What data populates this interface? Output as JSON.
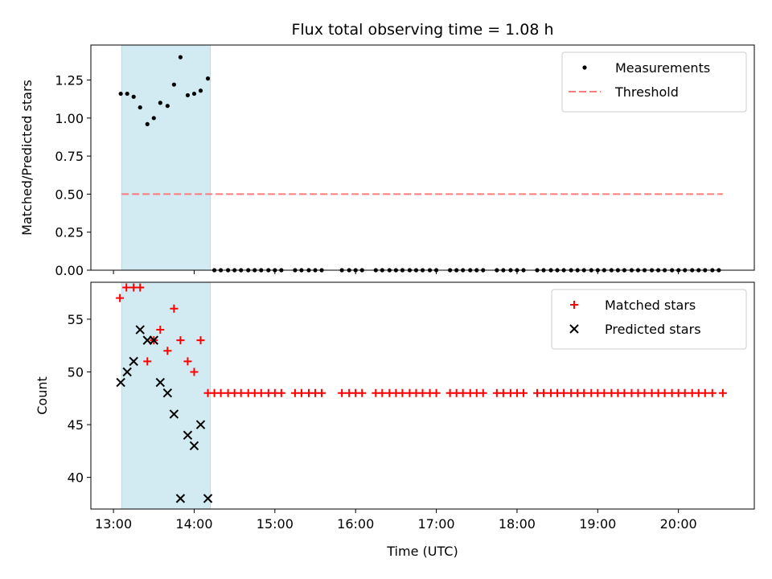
{
  "chart_data": {
    "type": "scatter",
    "title": "Flux total observing time = 1.08 h",
    "xlabel": "Time (UTC)",
    "x_unit": "hours_utc",
    "x_ticks": [
      {
        "value": 13,
        "label": "13:00"
      },
      {
        "value": 14,
        "label": "14:00"
      },
      {
        "value": 15,
        "label": "15:00"
      },
      {
        "value": 16,
        "label": "16:00"
      },
      {
        "value": 17,
        "label": "17:00"
      },
      {
        "value": 18,
        "label": "18:00"
      },
      {
        "value": 19,
        "label": "19:00"
      },
      {
        "value": 20,
        "label": "20:00"
      }
    ],
    "xlim": [
      12.72,
      20.94
    ],
    "shaded_span": {
      "start": 13.1,
      "end": 14.2,
      "color": "#add8e6"
    },
    "panels": [
      {
        "id": "ratio",
        "ylabel": "Matched/Predicted stars",
        "ylim": [
          0,
          1.48
        ],
        "y_ticks": [
          {
            "value": 0,
            "label": "0.00"
          },
          {
            "value": 0.25,
            "label": "0.25"
          },
          {
            "value": 0.5,
            "label": "0.50"
          },
          {
            "value": 0.75,
            "label": "0.75"
          },
          {
            "value": 1.0,
            "label": "1.00"
          },
          {
            "value": 1.25,
            "label": "1.25"
          }
        ],
        "series": [
          {
            "name": "Measurements",
            "marker": "dot",
            "color": "#000000",
            "x": [
              13.09,
              13.17,
              13.25,
              13.33,
              13.42,
              13.5,
              13.58,
              13.67,
              13.75,
              13.83,
              13.92,
              14.0,
              14.08,
              14.17,
              14.25,
              14.33,
              14.42,
              14.5,
              14.58,
              14.67,
              14.75,
              14.83,
              14.92,
              15.0,
              15.08,
              15.25,
              15.33,
              15.42,
              15.5,
              15.58,
              15.83,
              15.92,
              16.0,
              16.08,
              16.25,
              16.33,
              16.42,
              16.5,
              16.58,
              16.67,
              16.75,
              16.83,
              16.92,
              17.0,
              17.17,
              17.25,
              17.33,
              17.42,
              17.5,
              17.58,
              17.75,
              17.83,
              17.92,
              18.0,
              18.08,
              18.25,
              18.33,
              18.42,
              18.5,
              18.58,
              18.67,
              18.75,
              18.83,
              18.92,
              19.0,
              19.08,
              19.17,
              19.25,
              19.33,
              19.42,
              19.5,
              19.58,
              19.67,
              19.75,
              19.83,
              19.92,
              20.0,
              20.08,
              20.17,
              20.25,
              20.33,
              20.42,
              20.5
            ],
            "y": [
              1.16,
              1.16,
              1.14,
              1.07,
              0.96,
              1.0,
              1.1,
              1.08,
              1.22,
              1.4,
              1.15,
              1.16,
              1.18,
              1.26,
              0,
              0,
              0,
              0,
              0,
              0,
              0,
              0,
              0,
              0,
              0,
              0,
              0,
              0,
              0,
              0,
              0,
              0,
              0,
              0,
              0,
              0,
              0,
              0,
              0,
              0,
              0,
              0,
              0,
              0,
              0,
              0,
              0,
              0,
              0,
              0,
              0,
              0,
              0,
              0,
              0,
              0,
              0,
              0,
              0,
              0,
              0,
              0,
              0,
              0,
              0,
              0,
              0,
              0,
              0,
              0,
              0,
              0,
              0,
              0,
              0,
              0,
              0,
              0,
              0,
              0,
              0,
              0,
              0
            ]
          },
          {
            "name": "Threshold",
            "marker": "dashed-line",
            "color": "#ff7b7b",
            "x": [
              13.1,
              20.55
            ],
            "y": [
              0.5,
              0.5
            ]
          }
        ],
        "legend": {
          "placement": "top-right",
          "entries": [
            "Measurements",
            "Threshold"
          ]
        }
      },
      {
        "id": "counts",
        "ylabel": "Count",
        "ylim": [
          37,
          58.5
        ],
        "y_ticks": [
          {
            "value": 40,
            "label": "40"
          },
          {
            "value": 45,
            "label": "45"
          },
          {
            "value": 50,
            "label": "50"
          },
          {
            "value": 55,
            "label": "55"
          }
        ],
        "series": [
          {
            "name": "Matched stars",
            "marker": "plus",
            "color": "#ff0000",
            "x": [
              13.08,
              13.16,
              13.25,
              13.33,
              13.42,
              13.5,
              13.58,
              13.67,
              13.75,
              13.83,
              13.92,
              14.0,
              14.08,
              14.17,
              14.25,
              14.33,
              14.42,
              14.5,
              14.58,
              14.67,
              14.75,
              14.83,
              14.92,
              15.0,
              15.08,
              15.25,
              15.33,
              15.42,
              15.5,
              15.58,
              15.83,
              15.92,
              16.0,
              16.08,
              16.25,
              16.33,
              16.42,
              16.5,
              16.58,
              16.67,
              16.75,
              16.83,
              16.92,
              17.0,
              17.17,
              17.25,
              17.33,
              17.42,
              17.5,
              17.58,
              17.75,
              17.83,
              17.92,
              18.0,
              18.08,
              18.25,
              18.33,
              18.42,
              18.5,
              18.58,
              18.67,
              18.75,
              18.83,
              18.92,
              19.0,
              19.08,
              19.17,
              19.25,
              19.33,
              19.42,
              19.5,
              19.58,
              19.67,
              19.75,
              19.83,
              19.92,
              20.0,
              20.08,
              20.17,
              20.25,
              20.33,
              20.42,
              20.55
            ],
            "y": [
              57,
              58,
              58,
              58,
              51,
              53,
              54,
              52,
              56,
              53,
              51,
              50,
              53,
              48,
              48,
              48,
              48,
              48,
              48,
              48,
              48,
              48,
              48,
              48,
              48,
              48,
              48,
              48,
              48,
              48,
              48,
              48,
              48,
              48,
              48,
              48,
              48,
              48,
              48,
              48,
              48,
              48,
              48,
              48,
              48,
              48,
              48,
              48,
              48,
              48,
              48,
              48,
              48,
              48,
              48,
              48,
              48,
              48,
              48,
              48,
              48,
              48,
              48,
              48,
              48,
              48,
              48,
              48,
              48,
              48,
              48,
              48,
              48,
              48,
              48,
              48,
              48,
              48,
              48,
              48,
              48,
              48,
              48
            ]
          },
          {
            "name": "Predicted stars",
            "marker": "x",
            "color": "#000000",
            "x": [
              13.09,
              13.17,
              13.25,
              13.33,
              13.42,
              13.5,
              13.58,
              13.67,
              13.75,
              13.83,
              13.92,
              14.0,
              14.08,
              14.17
            ],
            "y": [
              49,
              50,
              51,
              54,
              53,
              53,
              49,
              48,
              46,
              38,
              44,
              43,
              45,
              38
            ]
          }
        ],
        "legend": {
          "placement": "top-right",
          "entries": [
            "Matched stars",
            "Predicted stars"
          ]
        }
      }
    ]
  }
}
